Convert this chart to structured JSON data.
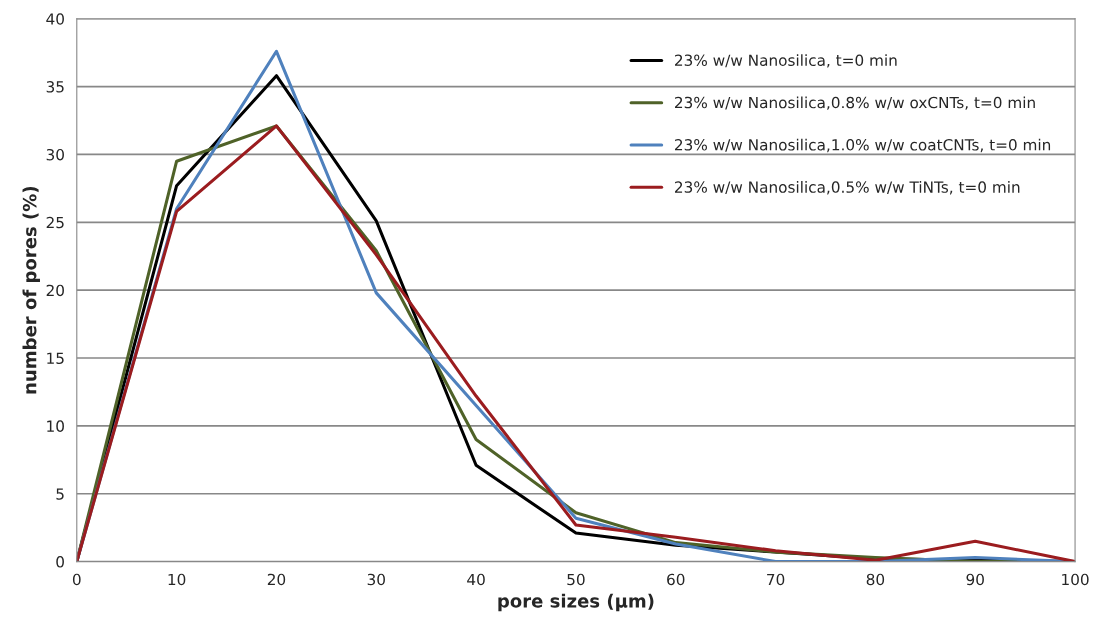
{
  "chart_data": {
    "type": "line",
    "xlabel": "pore sizes (μm)",
    "ylabel": "number of pores (%)",
    "x": [
      0,
      10,
      20,
      30,
      40,
      50,
      60,
      70,
      80,
      90,
      100
    ],
    "xlim": [
      0,
      100
    ],
    "xticks": [
      0,
      10,
      20,
      30,
      40,
      50,
      60,
      70,
      80,
      90,
      100
    ],
    "ylim": [
      0,
      40
    ],
    "yticks": [
      0,
      5,
      10,
      15,
      20,
      25,
      30,
      35,
      40
    ],
    "grid": "y",
    "legend": "top right",
    "marker": "none",
    "line_style": "solid",
    "series": [
      {
        "name": "23% w/w Nanosilica, t=0 min",
        "color": "#000000",
        "values": [
          0,
          27.7,
          35.8,
          25.1,
          7.1,
          2.1,
          1.2,
          0.7,
          0.2,
          0.1,
          0
        ]
      },
      {
        "name": "23% w/w Nanosilica,0.8% w/w oxCNTs, t=0 min",
        "color": "#4f6228",
        "values": [
          0,
          29.5,
          32.1,
          22.9,
          9.0,
          3.6,
          1.4,
          0.7,
          0.3,
          0,
          0
        ]
      },
      {
        "name": "23% w/w Nanosilica,1.0% w/w coatCNTs, t=0 min",
        "color": "#4f81bd",
        "values": [
          0,
          26.0,
          37.6,
          19.8,
          11.5,
          3.2,
          1.3,
          0,
          0,
          0.3,
          0
        ]
      },
      {
        "name": "23% w/w Nanosilica,0.5% w/w TiNTs, t=0 min",
        "color": "#9b1c1f",
        "values": [
          0,
          25.8,
          32.1,
          22.6,
          12.2,
          2.7,
          1.8,
          0.8,
          0.1,
          1.5,
          0
        ]
      }
    ]
  }
}
